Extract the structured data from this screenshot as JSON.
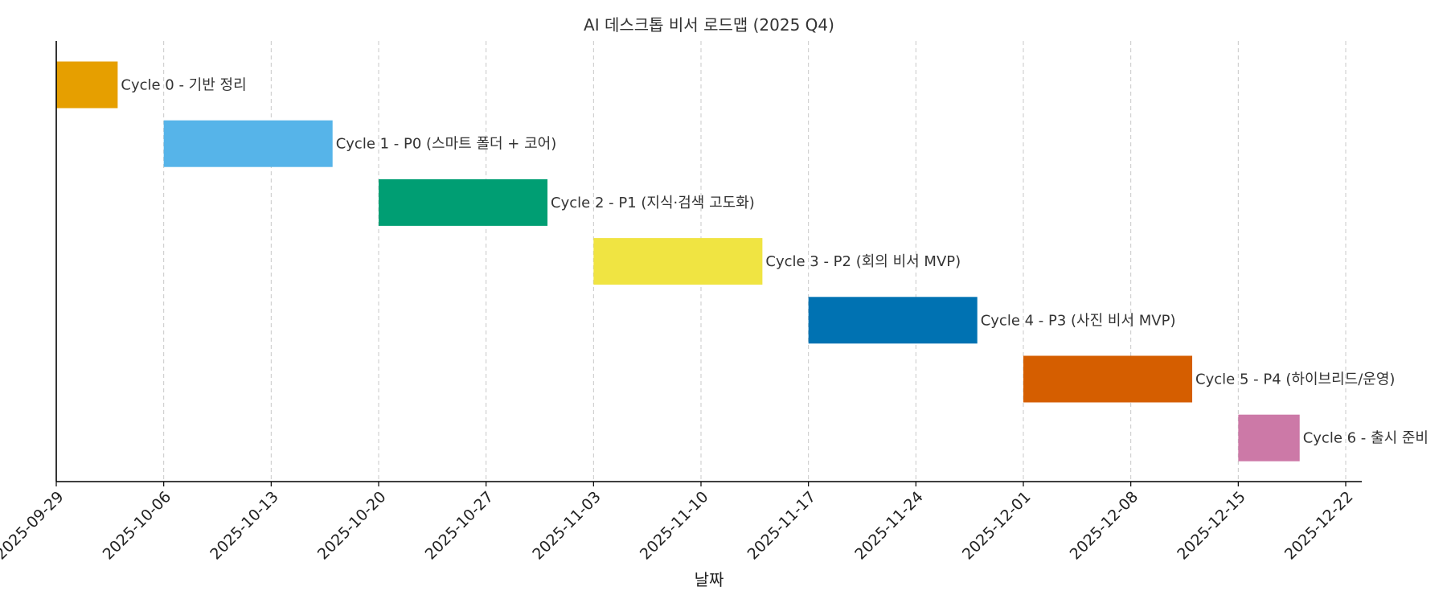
{
  "chart_data": {
    "type": "bar",
    "orientation": "horizontal-gantt",
    "title": "AI 데스크톱 비서 로드맵 (2025 Q4)",
    "xlabel": "날짜",
    "ylabel": "",
    "xlim": [
      "2025-09-29",
      "2025-12-22"
    ],
    "x_ticks": [
      "2025-09-29",
      "2025-10-06",
      "2025-10-13",
      "2025-10-20",
      "2025-10-27",
      "2025-11-03",
      "2025-11-10",
      "2025-11-17",
      "2025-11-24",
      "2025-12-01",
      "2025-12-08",
      "2025-12-15",
      "2025-12-22"
    ],
    "grid": "x-dashed",
    "tasks": [
      {
        "label": "Cycle 0 - 기반 정리",
        "start": "2025-09-29",
        "end": "2025-10-03",
        "color": "#E69F00"
      },
      {
        "label": "Cycle 1 - P0 (스마트 폴더 + 코어)",
        "start": "2025-10-06",
        "end": "2025-10-17",
        "color": "#56B4E9"
      },
      {
        "label": "Cycle 2 - P1 (지식·검색 고도화)",
        "start": "2025-10-20",
        "end": "2025-10-31",
        "color": "#009E73"
      },
      {
        "label": "Cycle 3 - P2 (회의 비서 MVP)",
        "start": "2025-11-03",
        "end": "2025-11-14",
        "color": "#F0E442"
      },
      {
        "label": "Cycle 4 - P3 (사진 비서 MVP)",
        "start": "2025-11-17",
        "end": "2025-11-28",
        "color": "#0072B2"
      },
      {
        "label": "Cycle 5 - P4 (하이브리드/운영)",
        "start": "2025-12-01",
        "end": "2025-12-12",
        "color": "#D55E00"
      },
      {
        "label": "Cycle 6 - 출시 준비",
        "start": "2025-12-15",
        "end": "2025-12-19",
        "color": "#CC79A7"
      }
    ]
  }
}
